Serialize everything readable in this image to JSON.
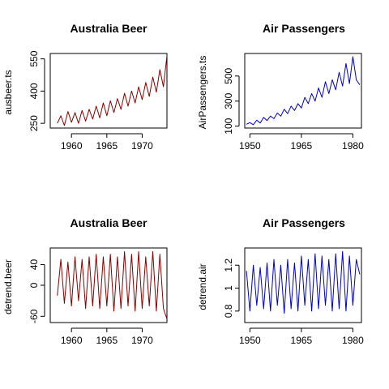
{
  "chart_data": [
    {
      "type": "line",
      "title": "Australia Beer",
      "xlabel": "",
      "ylabel": "ausbeer.ts",
      "color": "#8b0000",
      "xlim": [
        1957.0,
        1973.5
      ],
      "ylim": [
        228,
        575
      ],
      "xticks": [
        1960,
        1965,
        1970
      ],
      "yticks": [
        250,
        400,
        550
      ],
      "series": [
        {
          "x": [
            1958.0,
            1958.5,
            1959.0,
            1959.5,
            1960.0,
            1960.5,
            1961.0,
            1961.5,
            1962.0,
            1962.5,
            1963.0,
            1963.5,
            1964.0,
            1964.5,
            1965.0,
            1965.5,
            1966.0,
            1966.5,
            1967.0,
            1967.5,
            1968.0,
            1968.5,
            1969.0,
            1969.5,
            1970.0,
            1970.5,
            1971.0,
            1971.5,
            1972.0,
            1972.5,
            1973.0,
            1973.5
          ],
          "y": [
            250,
            285,
            240,
            305,
            255,
            300,
            250,
            310,
            260,
            315,
            270,
            330,
            275,
            345,
            285,
            355,
            300,
            365,
            315,
            390,
            330,
            400,
            345,
            420,
            360,
            440,
            375,
            465,
            395,
            500,
            420,
            565
          ]
        }
      ]
    },
    {
      "type": "line",
      "title": "Air Passengers",
      "xlabel": "",
      "ylabel": "AirPassengers.ts",
      "color": "#0000cd",
      "xlim": [
        1948.5,
        1982.5
      ],
      "ylim": [
        85,
        680
      ],
      "xticks": [
        1950,
        1965,
        1980
      ],
      "yticks": [
        100,
        300,
        500
      ],
      "series": [
        {
          "x": [
            1949.0,
            1950.0,
            1951.0,
            1952.0,
            1953.0,
            1954.0,
            1955.0,
            1956.0,
            1957.0,
            1958.0,
            1959.0,
            1960.0,
            1961.0,
            1962.0,
            1963.0,
            1964.0,
            1965.0,
            1966.0,
            1967.0,
            1968.0,
            1969.0,
            1970.0,
            1971.0,
            1972.0,
            1973.0,
            1974.0,
            1975.0,
            1976.0,
            1977.0,
            1978.0,
            1979.0,
            1980.0,
            1981.0,
            1982.0
          ],
          "y": [
            115,
            128,
            112,
            148,
            125,
            170,
            145,
            180,
            160,
            205,
            180,
            235,
            200,
            260,
            225,
            280,
            245,
            330,
            280,
            360,
            300,
            405,
            330,
            455,
            360,
            470,
            390,
            530,
            420,
            600,
            440,
            655,
            470,
            430
          ]
        }
      ]
    },
    {
      "type": "line",
      "title": "Australia Beer",
      "xlabel": "",
      "ylabel": "detrend.beer",
      "color": "#8b0000",
      "xlim": [
        1957.0,
        1973.5
      ],
      "ylim": [
        -72,
        72
      ],
      "xticks": [
        1960,
        1965,
        1970
      ],
      "yticks": [
        -60,
        0,
        40
      ],
      "series": [
        {
          "x": [
            1958.0,
            1958.5,
            1959.0,
            1959.5,
            1960.0,
            1960.5,
            1961.0,
            1961.5,
            1962.0,
            1962.5,
            1963.0,
            1963.5,
            1964.0,
            1964.5,
            1965.0,
            1965.5,
            1966.0,
            1966.5,
            1967.0,
            1967.5,
            1968.0,
            1968.5,
            1969.0,
            1969.5,
            1970.0,
            1970.5,
            1971.0,
            1971.5,
            1972.0,
            1972.5,
            1973.0,
            1973.5
          ],
          "y": [
            -20,
            50,
            -35,
            45,
            -40,
            55,
            -30,
            50,
            -45,
            55,
            -40,
            60,
            -45,
            55,
            -40,
            60,
            -50,
            55,
            -45,
            65,
            -40,
            60,
            -50,
            65,
            -45,
            55,
            -40,
            65,
            -50,
            60,
            -45,
            -65
          ]
        }
      ]
    },
    {
      "type": "line",
      "title": "Air Passengers",
      "xlabel": "",
      "ylabel": "detrend.air",
      "color": "#0000cd",
      "xlim": [
        1948.5,
        1982.5
      ],
      "ylim": [
        0.7,
        1.35
      ],
      "xticks": [
        1950,
        1965,
        1980
      ],
      "yticks": [
        0.8,
        1.0,
        1.2
      ],
      "series": [
        {
          "x": [
            1949.0,
            1950.0,
            1951.0,
            1952.0,
            1953.0,
            1954.0,
            1955.0,
            1956.0,
            1957.0,
            1958.0,
            1959.0,
            1960.0,
            1961.0,
            1962.0,
            1963.0,
            1964.0,
            1965.0,
            1966.0,
            1967.0,
            1968.0,
            1969.0,
            1970.0,
            1971.0,
            1972.0,
            1973.0,
            1974.0,
            1975.0,
            1976.0,
            1977.0,
            1978.0,
            1979.0,
            1980.0,
            1981.0,
            1982.0
          ],
          "y": [
            1.15,
            0.8,
            1.2,
            0.85,
            1.18,
            0.82,
            1.22,
            0.8,
            1.25,
            0.85,
            1.2,
            0.78,
            1.25,
            0.82,
            1.22,
            0.8,
            1.28,
            0.85,
            1.25,
            0.8,
            1.3,
            0.82,
            1.28,
            0.85,
            1.25,
            0.8,
            1.3,
            0.82,
            1.32,
            0.8,
            1.28,
            0.85,
            1.25,
            1.12
          ]
        }
      ]
    }
  ]
}
